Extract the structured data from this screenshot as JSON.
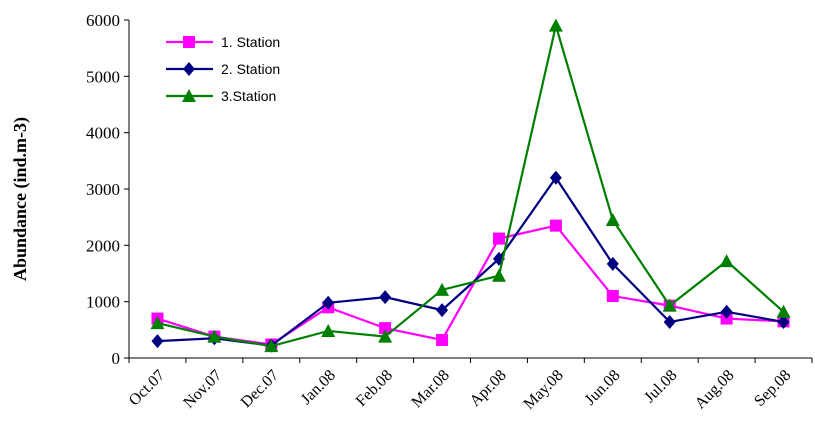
{
  "chart_data": {
    "type": "line",
    "ylabel": "Abundance (ind.m-3)",
    "xlabel": "",
    "ylim": [
      0,
      6000
    ],
    "yticks": [
      0,
      1000,
      2000,
      3000,
      4000,
      5000,
      6000
    ],
    "grid": false,
    "legend_position": "top-left",
    "categories": [
      "Oct.07",
      "Nov.07",
      "Dec.07",
      "Jan.08",
      "Feb.08",
      "Mar.08",
      "Apr.08",
      "May.08",
      "Jun.08",
      "Jul.08",
      "Aug.08",
      "Sep.08"
    ],
    "series": [
      {
        "name": "1. Station",
        "color": "#ff00ff",
        "marker": "square",
        "values": [
          700,
          380,
          240,
          900,
          530,
          320,
          2120,
          2350,
          1100,
          930,
          700,
          650
        ]
      },
      {
        "name": "2. Station",
        "color": "#000080",
        "marker": "diamond",
        "values": [
          300,
          350,
          220,
          980,
          1080,
          850,
          1760,
          3200,
          1670,
          640,
          820,
          640
        ]
      },
      {
        "name": "3.Station",
        "color": "#008000",
        "marker": "triangle",
        "values": [
          620,
          380,
          210,
          480,
          380,
          1210,
          1460,
          5900,
          2450,
          930,
          1720,
          820
        ]
      }
    ]
  }
}
